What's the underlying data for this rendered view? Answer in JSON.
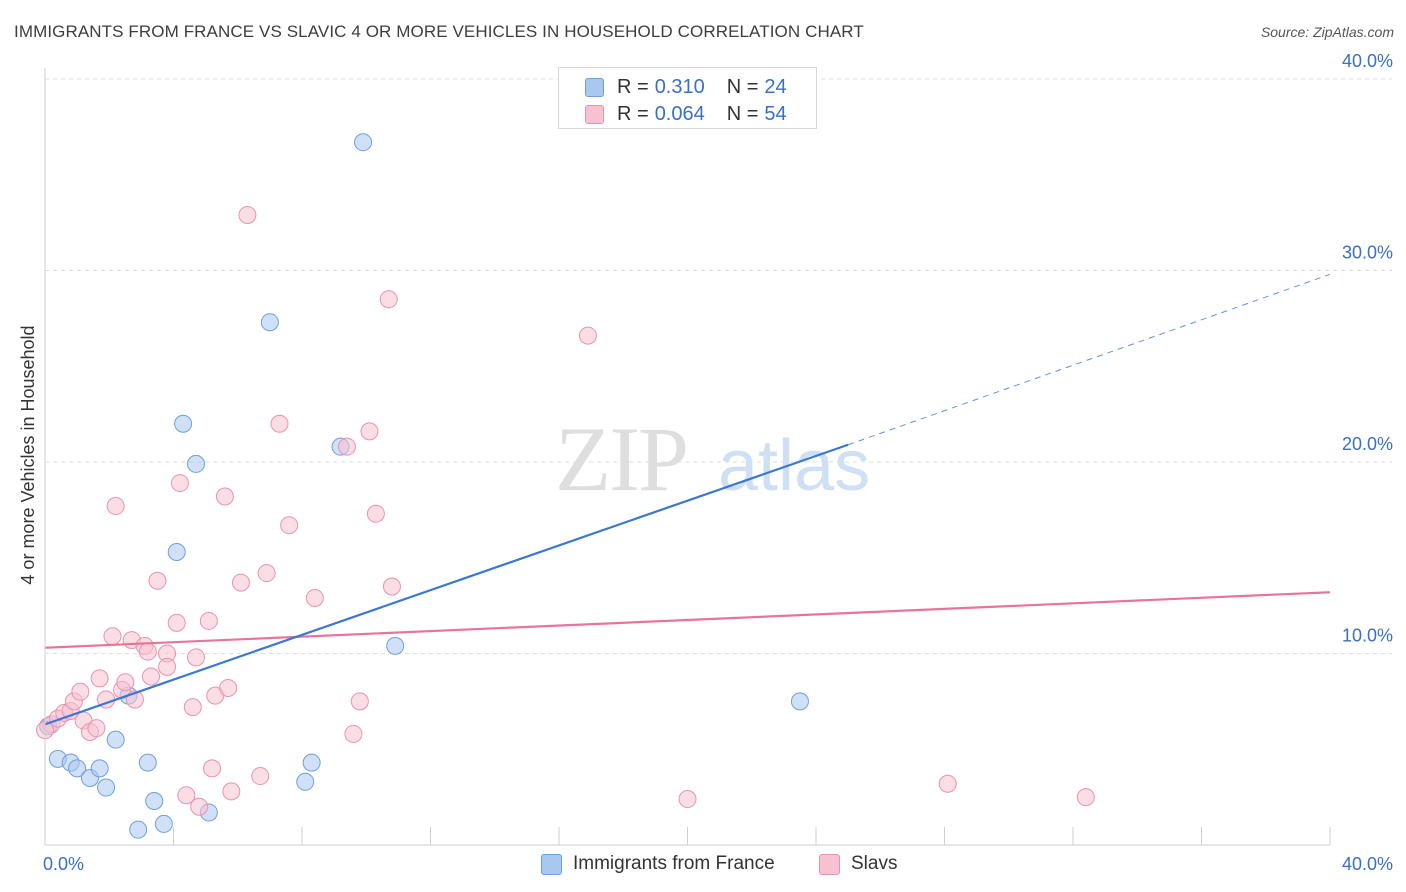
{
  "header": {
    "title": "IMMIGRANTS FROM FRANCE VS SLAVIC 4 OR MORE VEHICLES IN HOUSEHOLD CORRELATION CHART",
    "source": "Source: ZipAtlas.com"
  },
  "watermark": {
    "zip": "ZIP",
    "atlas": "atlas"
  },
  "legend": {
    "rows": [
      {
        "r_label": "R =",
        "r_value": "0.310",
        "n_label": "N =",
        "n_value": "24",
        "color": "#a9c8f0",
        "border": "#6f9fdd"
      },
      {
        "r_label": "R =",
        "r_value": "0.064",
        "n_label": "N =",
        "n_value": "54",
        "color": "#f7c1d1",
        "border": "#e993ae"
      }
    ]
  },
  "bottom_legend": {
    "items": [
      {
        "label": "Immigrants from France",
        "color": "#a9c8f0",
        "border": "#6f9fdd"
      },
      {
        "label": "Slavs",
        "color": "#f7c1d1",
        "border": "#e993ae"
      }
    ]
  },
  "chart_data": {
    "type": "scatter",
    "title": "IMMIGRANTS FROM FRANCE VS SLAVIC 4 OR MORE VEHICLES IN HOUSEHOLD CORRELATION CHART",
    "xlabel": "",
    "ylabel": "4 or more Vehicles in Household",
    "xlim": [
      0,
      40
    ],
    "ylim": [
      0,
      40
    ],
    "x_ticks_labels": [
      "0.0%",
      "40.0%"
    ],
    "y_ticks": [
      10,
      20,
      30,
      40
    ],
    "y_tick_labels": [
      "10.0%",
      "20.0%",
      "30.0%",
      "40.0%"
    ],
    "grid": true,
    "legend_position": "top-center",
    "colors": {
      "blue": "#3a78d4",
      "pink": "#e8749a",
      "tick": "#3a6fc9"
    },
    "series": [
      {
        "name": "Immigrants from France",
        "color": "#a9c8f0",
        "edge": "#6f9fdd",
        "points": [
          [
            0.1,
            6.2
          ],
          [
            0.4,
            4.5
          ],
          [
            0.8,
            4.3
          ],
          [
            1.0,
            4.0
          ],
          [
            1.4,
            3.5
          ],
          [
            1.7,
            4.0
          ],
          [
            1.9,
            3.0
          ],
          [
            2.2,
            5.5
          ],
          [
            2.6,
            7.8
          ],
          [
            2.9,
            0.8
          ],
          [
            3.2,
            4.3
          ],
          [
            3.4,
            2.3
          ],
          [
            3.7,
            1.1
          ],
          [
            4.1,
            15.3
          ],
          [
            4.3,
            22.0
          ],
          [
            4.7,
            19.9
          ],
          [
            5.1,
            1.7
          ],
          [
            7.0,
            27.3
          ],
          [
            8.1,
            3.3
          ],
          [
            8.3,
            4.3
          ],
          [
            9.2,
            20.8
          ],
          [
            9.9,
            36.7
          ],
          [
            10.9,
            10.4
          ],
          [
            23.5,
            7.5
          ]
        ],
        "trend": {
          "x0": 0,
          "y0": 6.3,
          "x1": 25,
          "y1": 20.9,
          "dashed_to_x": 40,
          "dashed_to_y": 29.8
        }
      },
      {
        "name": "Slavs",
        "color": "#f7c1d1",
        "edge": "#e993ae",
        "points": [
          [
            0.2,
            6.3
          ],
          [
            0.4,
            6.6
          ],
          [
            0.6,
            6.9
          ],
          [
            0.8,
            7.0
          ],
          [
            0.9,
            7.5
          ],
          [
            1.1,
            8.0
          ],
          [
            1.2,
            6.5
          ],
          [
            1.4,
            5.9
          ],
          [
            1.6,
            6.1
          ],
          [
            1.7,
            8.7
          ],
          [
            1.9,
            7.6
          ],
          [
            2.1,
            10.9
          ],
          [
            2.2,
            17.7
          ],
          [
            2.4,
            8.1
          ],
          [
            2.5,
            8.5
          ],
          [
            2.7,
            10.7
          ],
          [
            2.8,
            7.6
          ],
          [
            3.1,
            10.4
          ],
          [
            3.2,
            10.1
          ],
          [
            3.3,
            8.8
          ],
          [
            3.5,
            13.8
          ],
          [
            3.8,
            10.0
          ],
          [
            3.8,
            9.3
          ],
          [
            4.1,
            11.6
          ],
          [
            4.2,
            18.9
          ],
          [
            4.4,
            2.6
          ],
          [
            4.6,
            7.2
          ],
          [
            4.7,
            9.8
          ],
          [
            4.8,
            2.0
          ],
          [
            5.1,
            11.7
          ],
          [
            5.2,
            4.0
          ],
          [
            5.3,
            7.8
          ],
          [
            5.6,
            18.2
          ],
          [
            5.7,
            8.2
          ],
          [
            5.8,
            2.8
          ],
          [
            6.1,
            13.7
          ],
          [
            6.3,
            32.9
          ],
          [
            6.7,
            3.6
          ],
          [
            6.9,
            14.2
          ],
          [
            7.3,
            22.0
          ],
          [
            7.6,
            16.7
          ],
          [
            8.4,
            12.9
          ],
          [
            9.4,
            20.8
          ],
          [
            9.6,
            5.8
          ],
          [
            9.8,
            7.5
          ],
          [
            10.1,
            21.6
          ],
          [
            10.3,
            17.3
          ],
          [
            10.7,
            28.5
          ],
          [
            10.8,
            13.5
          ],
          [
            16.9,
            26.6
          ],
          [
            20.0,
            2.4
          ],
          [
            28.1,
            3.2
          ],
          [
            32.4,
            2.5
          ],
          [
            0.0,
            6.0
          ]
        ],
        "trend": {
          "x0": 0,
          "y0": 10.3,
          "x1": 40,
          "y1": 13.2
        }
      }
    ]
  }
}
